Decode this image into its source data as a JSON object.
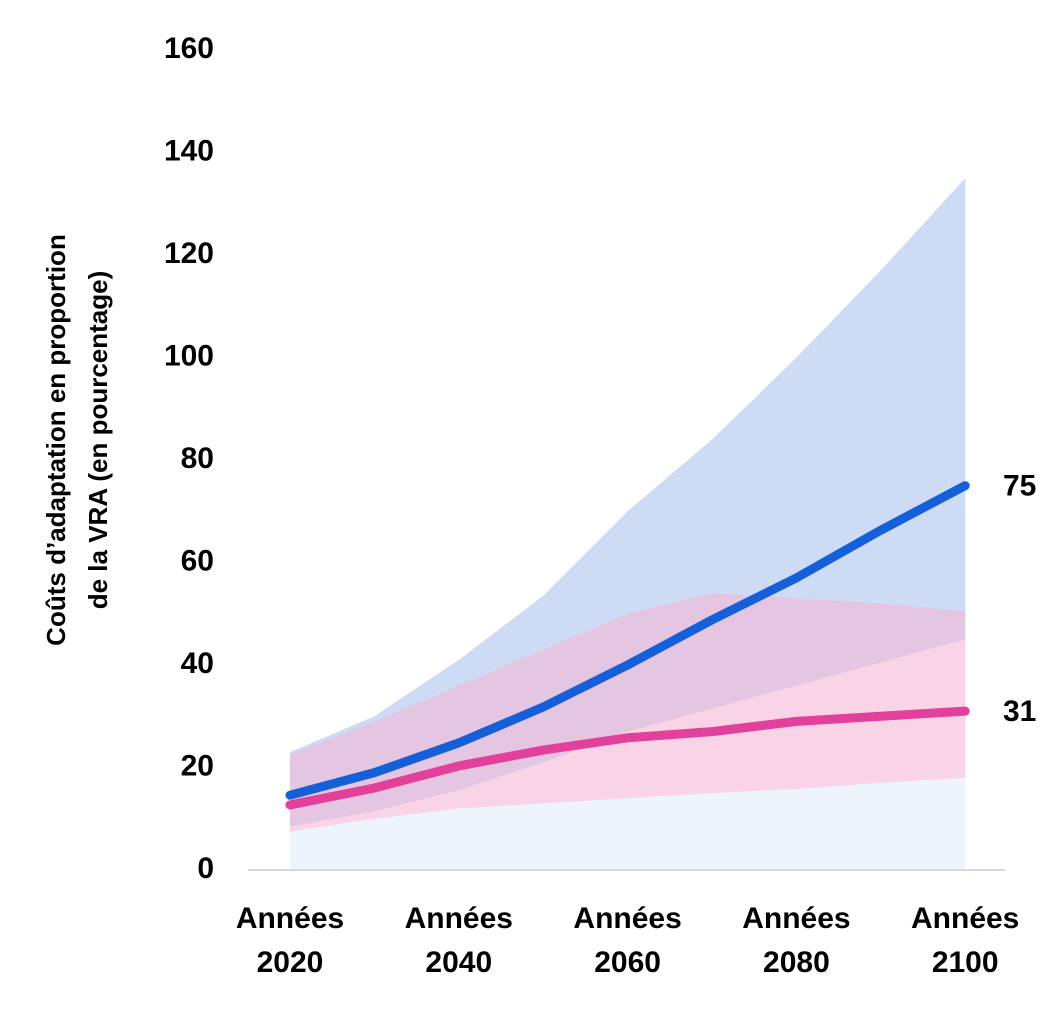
{
  "chart_data": {
    "type": "line",
    "y_label": [
      "Coûts d’adaptation en proportion",
      "de la VRA  (en pourcentage)"
    ],
    "categories": [
      "Années 2020",
      null,
      "Années 2040",
      null,
      "Années 2060",
      null,
      "Années 2080",
      null,
      "Années 2100"
    ],
    "series": [
      {
        "color": "#1560d8",
        "values": [
          14.6,
          19,
          24.8,
          31.8,
          40,
          48.8,
          57,
          66.3,
          75
        ],
        "band_color": "#cddcf4",
        "band_low": [
          8.5,
          11.5,
          15.6,
          21,
          27,
          31.5,
          36,
          40.5,
          45
        ],
        "band_high": [
          23,
          30,
          41,
          53.5,
          70,
          84,
          100,
          117,
          135
        ]
      },
      {
        "color": "#e2409a",
        "values": [
          12.7,
          16,
          20.3,
          23.4,
          25.8,
          27,
          29,
          30,
          31
        ],
        "band_color": "#f4b8d6",
        "band_low": [
          7.5,
          10,
          12,
          13,
          14,
          15,
          15.8,
          17,
          18
        ],
        "band_high": [
          22.5,
          29,
          36,
          43,
          50,
          54,
          53,
          52,
          50.5
        ]
      }
    ],
    "floor_color": "#eef4fc",
    "ylim": [
      0,
      160
    ],
    "yticks": [
      0,
      20,
      40,
      60,
      80,
      100,
      120,
      140,
      160
    ],
    "grid": false
  }
}
